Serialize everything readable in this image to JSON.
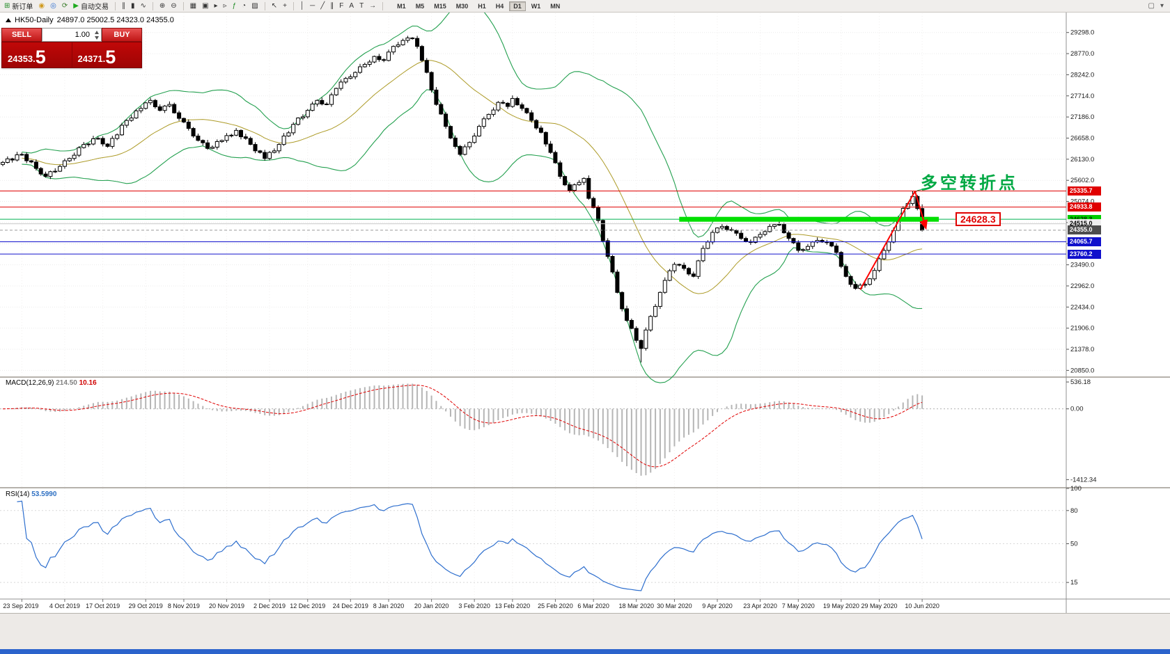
{
  "toolbar": {
    "buttons": [
      {
        "name": "new-order-button",
        "glyph": "⊞",
        "glyph_color": "#1f8b24",
        "label": "新订单"
      },
      {
        "name": "market-watch-icon",
        "glyph": "◉",
        "glyph_color": "#d09a1e"
      },
      {
        "name": "navigator-icon",
        "glyph": "◎",
        "glyph_color": "#2f6fd0"
      },
      {
        "name": "refresh-icon",
        "glyph": "⟳",
        "glyph_color": "#3a7d2c"
      },
      {
        "name": "autotrading-button",
        "glyph": "▶",
        "glyph_color": "#1faa1f",
        "label": "自动交易"
      },
      {
        "sep": true
      },
      {
        "name": "bar-chart-icon",
        "glyph": "∥",
        "glyph_color": "#333333"
      },
      {
        "name": "candlestick-chart-icon",
        "glyph": "▮",
        "glyph_color": "#333333"
      },
      {
        "name": "line-chart-icon",
        "glyph": "∿",
        "glyph_color": "#333333"
      },
      {
        "sep": true
      },
      {
        "name": "zoom-in-icon",
        "glyph": "⊕",
        "glyph_color": "#333333"
      },
      {
        "name": "zoom-out-icon",
        "glyph": "⊖",
        "glyph_color": "#333333"
      },
      {
        "sep": true
      },
      {
        "name": "grid-icon",
        "glyph": "▦",
        "glyph_color": "#333333"
      },
      {
        "name": "tile-windows-icon",
        "glyph": "▣",
        "glyph_color": "#333333"
      },
      {
        "name": "auto-scroll-icon",
        "glyph": "▸",
        "glyph_color": "#333333"
      },
      {
        "name": "chart-shift-icon",
        "glyph": "▹",
        "glyph_color": "#333333"
      },
      {
        "name": "indicators-icon",
        "glyph": "ƒ",
        "glyph_color": "#1f8b24"
      },
      {
        "name": "periods-icon",
        "glyph": "◔",
        "glyph_color": "#333333"
      },
      {
        "name": "templates-icon",
        "glyph": "▨",
        "glyph_color": "#333333"
      },
      {
        "sep": true
      },
      {
        "name": "cursor-icon",
        "glyph": "↖",
        "glyph_color": "#333333"
      },
      {
        "name": "crosshair-icon",
        "glyph": "+",
        "glyph_color": "#333333"
      },
      {
        "sep": true
      },
      {
        "name": "vertical-line-icon",
        "glyph": "│",
        "glyph_color": "#333333"
      },
      {
        "name": "horizontal-line-icon",
        "glyph": "─",
        "glyph_color": "#333333"
      },
      {
        "name": "trendline-icon",
        "glyph": "╱",
        "glyph_color": "#333333"
      },
      {
        "name": "channel-icon",
        "glyph": "∥",
        "glyph_color": "#333333"
      },
      {
        "name": "fibonacci-icon",
        "glyph": "F",
        "glyph_color": "#333333"
      },
      {
        "name": "text-icon",
        "glyph": "A",
        "glyph_color": "#333333"
      },
      {
        "name": "text-label-icon",
        "glyph": "T",
        "glyph_color": "#333333"
      },
      {
        "name": "arrows-icon",
        "glyph": "→",
        "glyph_color": "#333333"
      },
      {
        "sep": true
      }
    ],
    "timeframes": [
      "M1",
      "M5",
      "M15",
      "M30",
      "H1",
      "H4",
      "D1",
      "W1",
      "MN"
    ],
    "active_timeframe": "D1",
    "right_icons": [
      {
        "name": "window-icon",
        "glyph": "▢",
        "glyph_color": "#555555"
      },
      {
        "name": "more-icon",
        "glyph": "▾",
        "glyph_color": "#555555"
      }
    ]
  },
  "chart_header": {
    "symbol": "HK50-Daily",
    "ohlc": "24897.0 25002.5 24323.0 24355.0"
  },
  "trade_panel": {
    "sell_label": "SELL",
    "buy_label": "BUY",
    "volume": "1.00",
    "sell_price_main": "24353.",
    "sell_price_big": "5",
    "buy_price_main": "24371.",
    "buy_price_big": "5"
  },
  "annotations": {
    "turning_point": "多空转折点",
    "turning_point_color": "#00a843",
    "level_box": "24628.3",
    "level_box_color": "#e00000"
  },
  "price_axis": {
    "ticks": [
      "29298.0",
      "28770.0",
      "28242.0",
      "27714.0",
      "27186.0",
      "26658.0",
      "26130.0",
      "25602.0",
      "25074.0",
      "24546.0",
      "24018.0",
      "23490.0",
      "22962.0",
      "22434.0",
      "21906.0",
      "21378.0",
      "20850.0"
    ]
  },
  "x_axis": {
    "labels": [
      "23 Sep 2019",
      "4 Oct 2019",
      "17 Oct 2019",
      "29 Oct 2019",
      "8 Nov 2019",
      "20 Nov 2019",
      "2 Dec 2019",
      "12 Dec 2019",
      "24 Dec 2019",
      "8 Jan 2020",
      "20 Jan 2020",
      "3 Feb 2020",
      "13 Feb 2020",
      "25 Feb 2020",
      "6 Mar 2020",
      "18 Mar 2020",
      "30 Mar 2020",
      "9 Apr 2020",
      "23 Apr 2020",
      "7 May 2020",
      "19 May 2020",
      "29 May 2020",
      "10 Jun 2020"
    ]
  },
  "levels": [
    {
      "value": 25335.7,
      "label": "25335.7",
      "line": "#e00000",
      "tag_bg": "#e00000",
      "tag_fg": "#ffffff"
    },
    {
      "value": 24933.8,
      "label": "24933.8",
      "line": "#e00000",
      "tag_bg": "#e00000",
      "tag_fg": "#ffffff"
    },
    {
      "value": 24628.3,
      "label": "24628.3",
      "line": "#00b050",
      "tag_bg": "#00cc00",
      "tag_fg": "#003300"
    },
    {
      "value": 24515.0,
      "label": "24515.0",
      "line": "#c8c8c8",
      "tag_bg": "#eeeeee",
      "tag_fg": "#000000"
    },
    {
      "value": 24355.0,
      "label": "24355.0",
      "line": "#999999",
      "dash": "4 3",
      "tag_bg": "#4d4d4d",
      "tag_fg": "#ffffff"
    },
    {
      "value": 24065.7,
      "label": "24065.7",
      "line": "#1010cc",
      "tag_bg": "#1010cc",
      "tag_fg": "#ffffff"
    },
    {
      "value": 23760.2,
      "label": "23760.2",
      "line": "#1010cc",
      "tag_bg": "#1010cc",
      "tag_fg": "#ffffff"
    }
  ],
  "green_zone": {
    "value": 24628.3,
    "from_index": 142,
    "to_index": 196.5,
    "color": "#00e000",
    "thickness": 7
  },
  "trend_lines": [
    {
      "x1_index": 180,
      "p1": 22870,
      "x2_index": 191.5,
      "p2": 25330,
      "color": "#ff0000",
      "width": 2,
      "arrow": false
    },
    {
      "x1_index": 191.5,
      "p1": 25330,
      "x2_index": 193.8,
      "p2": 24400,
      "color": "#ff0000",
      "width": 2,
      "arrow": true
    }
  ],
  "macd": {
    "title": "MACD(12,26,9)",
    "value_main": "214.50",
    "value_signal": "10.16",
    "scale_ticks": [
      "536.18",
      "0.00",
      "-1412.34"
    ]
  },
  "rsi": {
    "title": "RSI(14)",
    "value": "53.5990",
    "levels": [
      "100",
      "80",
      "50",
      "15"
    ]
  },
  "chart_data": {
    "type": "candlestick",
    "timeframe": "D1",
    "visible_price_range": [
      20700,
      29780
    ],
    "first_open": 26000,
    "closes": [
      26050,
      26140,
      26110,
      26240,
      26250,
      26090,
      26060,
      25900,
      25760,
      25700,
      25820,
      25830,
      25950,
      26090,
      26150,
      26230,
      26420,
      26500,
      26510,
      26640,
      26650,
      26510,
      26450,
      26650,
      26740,
      26980,
      27100,
      27160,
      27340,
      27400,
      27540,
      27600,
      27440,
      27350,
      27460,
      27500,
      27290,
      27150,
      27060,
      26900,
      26710,
      26600,
      26540,
      26400,
      26430,
      26570,
      26600,
      26720,
      26730,
      26850,
      26690,
      26650,
      26500,
      26340,
      26300,
      26150,
      26300,
      26340,
      26500,
      26710,
      26790,
      27000,
      27160,
      27190,
      27350,
      27510,
      27600,
      27510,
      27500,
      27740,
      27900,
      28060,
      28150,
      28190,
      28300,
      28440,
      28500,
      28560,
      28700,
      28620,
      28600,
      28810,
      28950,
      28990,
      29100,
      29160,
      29150,
      28950,
      28600,
      28300,
      27860,
      27500,
      27260,
      26950,
      26660,
      26450,
      26250,
      26440,
      26550,
      26710,
      26950,
      27140,
      27250,
      27360,
      27550,
      27530,
      27450,
      27650,
      27490,
      27400,
      27290,
      27100,
      26910,
      26800,
      26510,
      26300,
      26040,
      25700,
      25490,
      25350,
      25490,
      25550,
      25650,
      25150,
      24920,
      24600,
      24090,
      23700,
      23310,
      22800,
      22390,
      22100,
      21900,
      21600,
      21400,
      21860,
      22200,
      22450,
      22800,
      23100,
      23340,
      23500,
      23480,
      23400,
      23260,
      23200,
      23590,
      23900,
      24060,
      24300,
      24410,
      24450,
      24370,
      24350,
      24280,
      24150,
      24070,
      24050,
      24180,
      24250,
      24320,
      24450,
      24495,
      24500,
      24290,
      24150,
      24040,
      23850,
      23870,
      23950,
      24060,
      24100,
      24060,
      24050,
      23960,
      23800,
      23450,
      23200,
      23000,
      22900,
      22980,
      23000,
      23140,
      23350,
      23640,
      23850,
      24060,
      24350,
      24670,
      24900,
      25020,
      25200,
      24897,
      24355
    ],
    "last_candle": {
      "open": 24897.0,
      "high": 25002.5,
      "low": 24323.0,
      "close": 24355.0
    },
    "extra_wicks": {
      "134": {
        "low": 21050
      },
      "191": {
        "high": 25335
      }
    },
    "indicators": [
      {
        "name": "bands-overlay",
        "color": "#23a04f"
      },
      {
        "name": "MACD",
        "params": "12,26,9"
      },
      {
        "name": "RSI",
        "params": "14"
      }
    ]
  }
}
